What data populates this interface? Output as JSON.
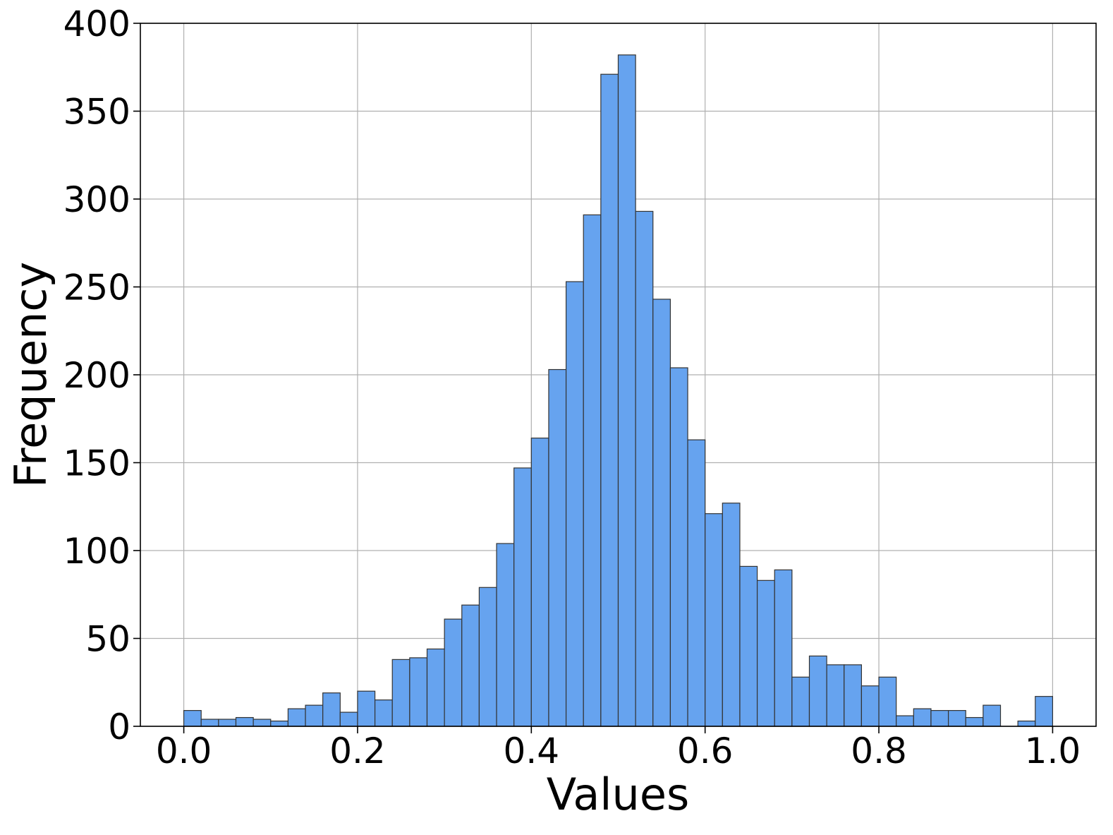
{
  "chart_data": {
    "type": "bar",
    "title": "",
    "xlabel": "Values",
    "ylabel": "Frequency",
    "xlim": [
      -0.05,
      1.05
    ],
    "ylim": [
      0,
      400
    ],
    "grid": true,
    "bar_color": "#66a3ef",
    "edge_color": "#333333",
    "bin_width": 0.02,
    "bin_starts": [
      0.0,
      0.02,
      0.04,
      0.06,
      0.08,
      0.1,
      0.12,
      0.14,
      0.16,
      0.18,
      0.2,
      0.22,
      0.24,
      0.26,
      0.28,
      0.3,
      0.32,
      0.34,
      0.36,
      0.38,
      0.4,
      0.42,
      0.44,
      0.46,
      0.48,
      0.5,
      0.52,
      0.54,
      0.56,
      0.58,
      0.6,
      0.62,
      0.64,
      0.66,
      0.68,
      0.7,
      0.72,
      0.74,
      0.76,
      0.78,
      0.8,
      0.82,
      0.84,
      0.86,
      0.88,
      0.9,
      0.92,
      0.94,
      0.96,
      0.98
    ],
    "values": [
      9,
      4,
      4,
      5,
      4,
      3,
      10,
      12,
      19,
      8,
      20,
      15,
      38,
      39,
      44,
      61,
      69,
      79,
      104,
      147,
      164,
      203,
      253,
      291,
      371,
      382,
      293,
      243,
      204,
      163,
      121,
      127,
      91,
      83,
      89,
      28,
      40,
      35,
      35,
      23,
      28,
      6,
      10,
      9,
      9,
      5,
      12,
      0,
      3,
      17
    ],
    "x_ticks": [
      0.0,
      0.2,
      0.4,
      0.6,
      0.8,
      1.0
    ],
    "x_tick_labels": [
      "0.0",
      "0.2",
      "0.4",
      "0.6",
      "0.8",
      "1.0"
    ],
    "y_ticks": [
      0,
      50,
      100,
      150,
      200,
      250,
      300,
      350,
      400
    ],
    "y_tick_labels": [
      "0",
      "50",
      "100",
      "150",
      "200",
      "250",
      "300",
      "350",
      "400"
    ]
  }
}
